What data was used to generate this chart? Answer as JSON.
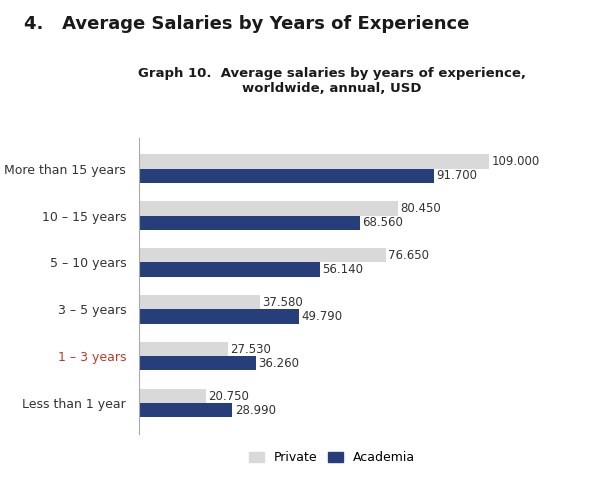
{
  "heading": "4.   Average Salaries by Years of Experience",
  "subtitle": "Graph 10.  Average salaries by years of experience,\nworldwide, annual, USD",
  "categories": [
    "Less than 1 year",
    "1 – 3 years",
    "3 – 5 years",
    "5 – 10 years",
    "10 – 15 years",
    "More than 15 years"
  ],
  "private_values": [
    20750,
    27530,
    37580,
    76650,
    80450,
    109000
  ],
  "academia_values": [
    28990,
    36260,
    49790,
    56140,
    68560,
    91700
  ],
  "private_labels": [
    "20.750",
    "27.530",
    "37.580",
    "76.650",
    "80.450",
    "109.000"
  ],
  "academia_labels": [
    "28.990",
    "36.260",
    "49.790",
    "56.140",
    "68.560",
    "91.700"
  ],
  "private_color": "#d9d9d9",
  "academia_color": "#263f7a",
  "highlight_category": "1 – 3 years",
  "highlight_color": "#c0392b",
  "bar_height": 0.3,
  "xlim": [
    0,
    120000
  ],
  "background_color": "#ffffff",
  "label_fontsize": 8.5,
  "category_fontsize": 9,
  "heading_fontsize": 13,
  "subtitle_fontsize": 9.5
}
